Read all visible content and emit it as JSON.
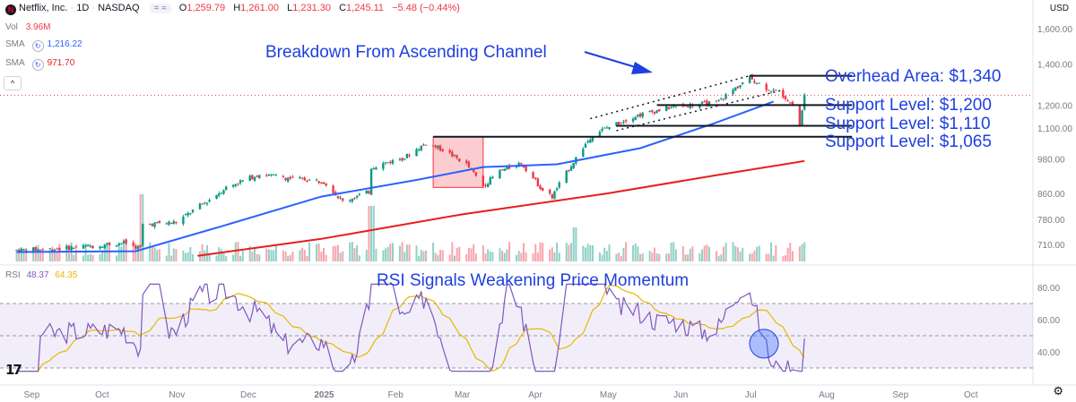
{
  "header": {
    "symbol": "Netflix, Inc.",
    "interval": "1D",
    "exchange": "NASDAQ",
    "open_label": "O",
    "open": "1,259.79",
    "high_label": "H",
    "high": "1,261.00",
    "low_label": "L",
    "low": "1,231.30",
    "close_label": "C",
    "close": "1,245.11",
    "change": "−5.48 (−0.44%)",
    "currency": "USD"
  },
  "legend": {
    "vol_label": "Vol",
    "vol_value": "3.96M",
    "sma1_label": "SMA",
    "sma1_value": "1,216.22",
    "sma2_label": "SMA",
    "sma2_value": "971.70",
    "rsi_label": "RSI",
    "rsi_value": "48.37",
    "rsi_ma_value": "64.35"
  },
  "colors": {
    "up": "#089981",
    "down": "#f23645",
    "sma_fast": "#2962ff",
    "sma_slow": "#e81d1d",
    "annotation": "#1e3fe0",
    "rsi_line": "#7e57c2",
    "rsi_ma": "#e6b800"
  },
  "chart_data": [
    {
      "type": "candlestick",
      "title": "",
      "y_axis_ticks": [
        "1,600.00",
        "1,400.00",
        "1,200.00",
        "1,100.00",
        "980.00",
        "860.00",
        "780.00",
        "710.00"
      ],
      "x_axis_ticks": [
        "Sep",
        "Oct",
        "Nov",
        "Dec",
        "2025",
        "Feb",
        "Mar",
        "Apr",
        "May",
        "Jun",
        "Jul",
        "Aug",
        "Sep",
        "Oct"
      ],
      "ylim": [
        680,
        1620
      ],
      "y_scale": "log",
      "price_path": [
        [
          "2024-08-26",
          695
        ],
        [
          "2024-09-10",
          698
        ],
        [
          "2024-09-25",
          705
        ],
        [
          "2024-10-10",
          715
        ],
        [
          "2024-10-17",
          700
        ],
        [
          "2024-10-18",
          765
        ],
        [
          "2024-11-01",
          772
        ],
        [
          "2024-11-15",
          840
        ],
        [
          "2024-11-22",
          880
        ],
        [
          "2024-12-06",
          925
        ],
        [
          "2024-12-20",
          910
        ],
        [
          "2025-01-02",
          900
        ],
        [
          "2025-01-10",
          835
        ],
        [
          "2025-01-21",
          865
        ],
        [
          "2025-01-22",
          950
        ],
        [
          "2025-02-05",
          985
        ],
        [
          "2025-02-14",
          1040
        ],
        [
          "2025-02-21",
          1015
        ],
        [
          "2025-03-03",
          960
        ],
        [
          "2025-03-10",
          885
        ],
        [
          "2025-03-17",
          935
        ],
        [
          "2025-03-26",
          965
        ],
        [
          "2025-04-04",
          870
        ],
        [
          "2025-04-08",
          850
        ],
        [
          "2025-04-17",
          970
        ],
        [
          "2025-04-25",
          1075
        ],
        [
          "2025-05-12",
          1150
        ],
        [
          "2025-05-30",
          1195
        ],
        [
          "2025-06-16",
          1210
        ],
        [
          "2025-06-30",
          1330
        ],
        [
          "2025-07-07",
          1280
        ],
        [
          "2025-07-14",
          1245
        ],
        [
          "2025-07-18",
          1200
        ],
        [
          "2025-07-21",
          1110
        ],
        [
          "2025-07-23",
          1245
        ]
      ],
      "series": [
        {
          "name": "SMA",
          "values": [
            [
              "2024-08-26",
              690
            ],
            [
              "2024-10-15",
              692
            ],
            [
              "2024-11-20",
              760
            ],
            [
              "2025-01-01",
              850
            ],
            [
              "2025-02-10",
              905
            ],
            [
              "2025-03-10",
              950
            ],
            [
              "2025-04-10",
              960
            ],
            [
              "2025-05-15",
              1020
            ],
            [
              "2025-06-15",
              1120
            ],
            [
              "2025-07-10",
              1216
            ]
          ]
        },
        {
          "name": "SMA",
          "values": [
            [
              "2024-11-10",
              680
            ],
            [
              "2025-01-01",
              725
            ],
            [
              "2025-03-01",
              795
            ],
            [
              "2025-05-01",
              860
            ],
            [
              "2025-06-15",
              920
            ],
            [
              "2025-07-23",
              972
            ]
          ]
        }
      ],
      "annotations": [
        {
          "label": "Breakdown From Ascending Channel"
        },
        {
          "label": "Overhead Area: $1,340",
          "price": 1340
        },
        {
          "label": "Support Level: $1,200",
          "price": 1200
        },
        {
          "label": "Support Level: $1,110",
          "price": 1110
        },
        {
          "label": "Support Level: $1,065",
          "price": 1065
        }
      ],
      "consolidation_box": {
        "from": "2025-02-17",
        "to": "2025-03-10",
        "price_low": 880,
        "price_high": 1065
      }
    },
    {
      "type": "line",
      "title": "RSI Signals Weakening Price Momentum",
      "y_axis_ticks": [
        "80.00",
        "60.00",
        "40.00"
      ],
      "overbought": 70,
      "oversold": 30,
      "ylim": [
        25,
        85
      ],
      "last_value": 48.37,
      "ma_last_value": 64.35
    }
  ]
}
